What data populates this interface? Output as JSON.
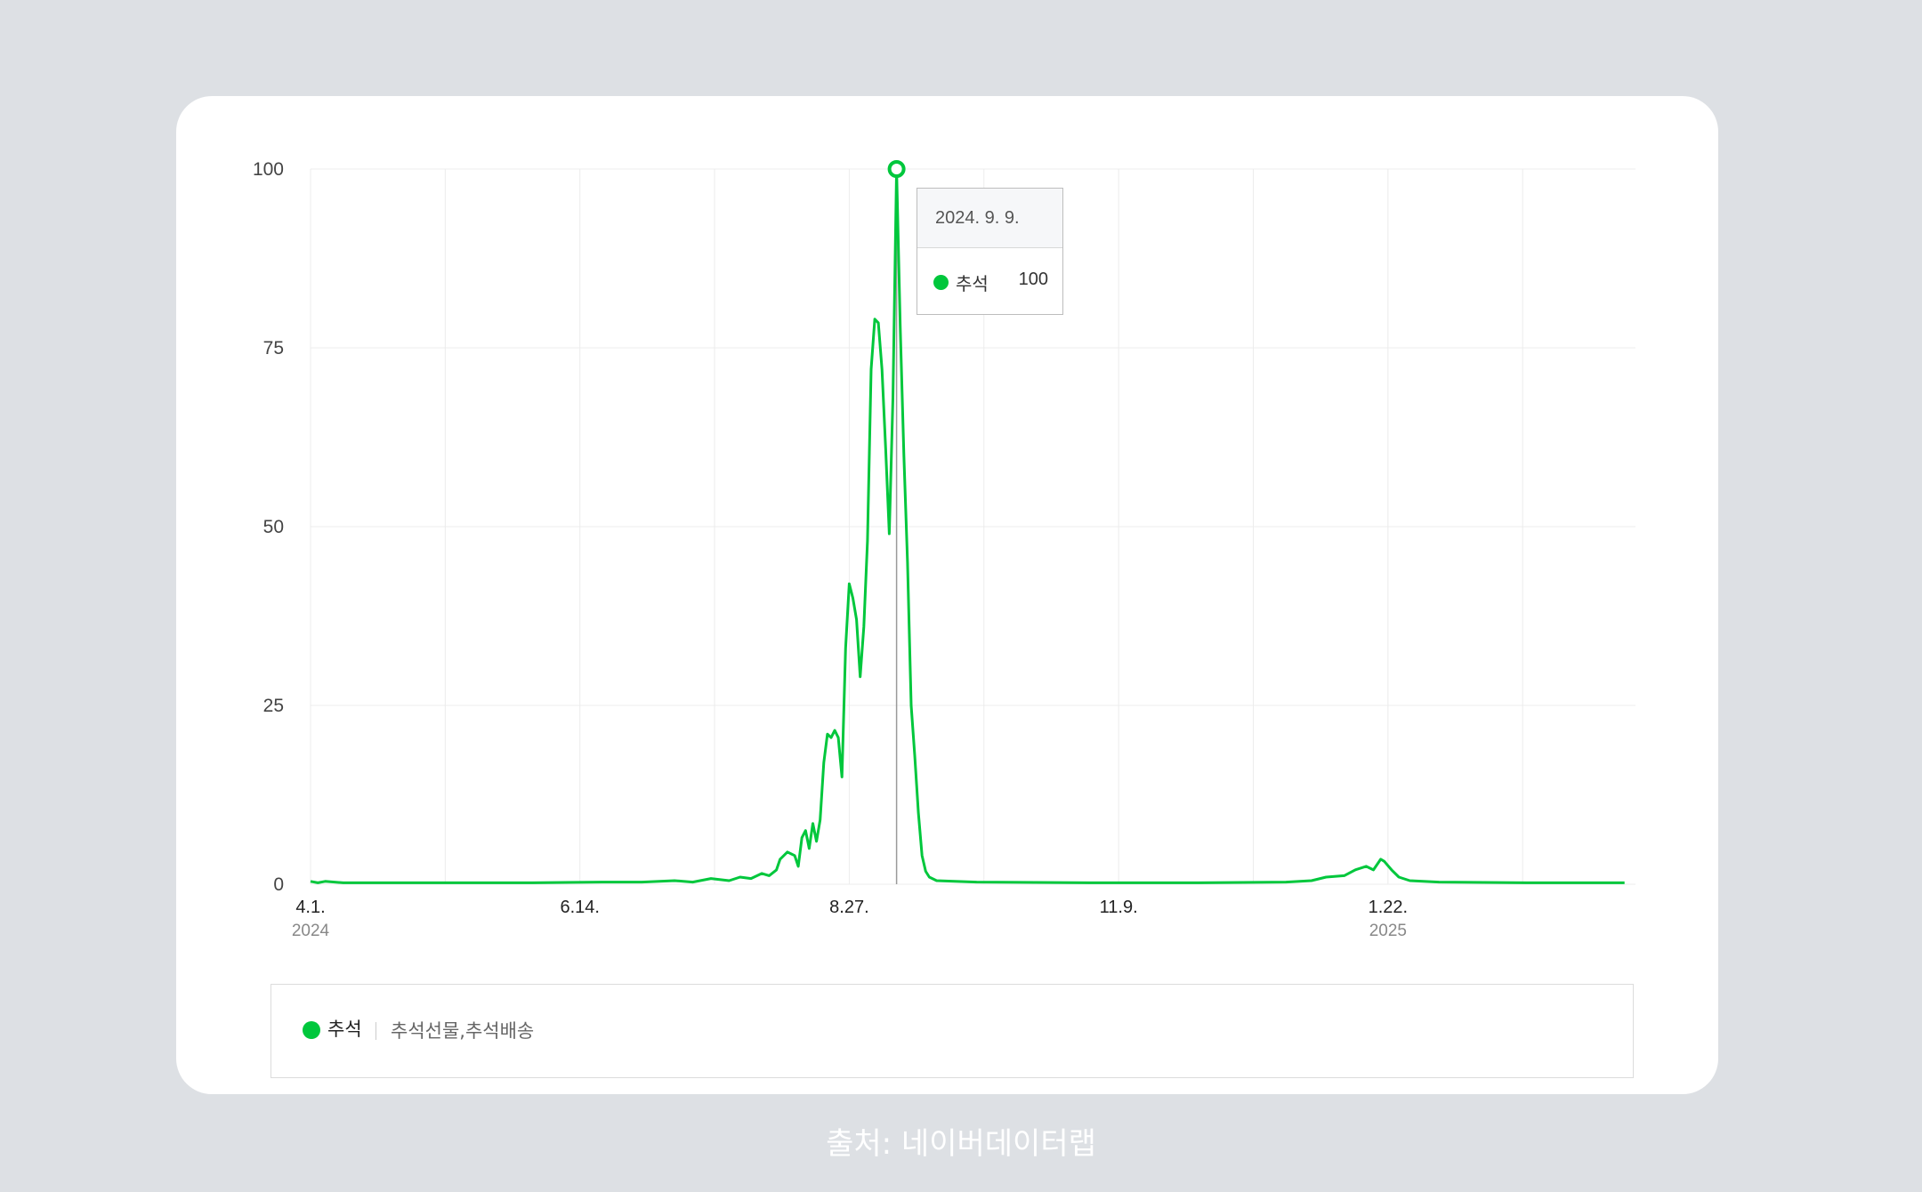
{
  "source_caption": "출처: 네이버데이터랩",
  "colors": {
    "series": "#00c73c",
    "grid": "#ececec",
    "page_bg": "#dde0e4"
  },
  "tooltip": {
    "date": "2024. 9. 9.",
    "series_name": "추석",
    "value": "100"
  },
  "legend": {
    "name": "추석",
    "keywords": "추석선물,추석배송"
  },
  "chart_data": {
    "type": "line",
    "title": "",
    "xlabel": "",
    "ylabel": "",
    "ylim": [
      0,
      100
    ],
    "xlim": [
      "2024-04-01",
      "2025-03-31"
    ],
    "y_ticks": [
      "0",
      "25",
      "50",
      "75",
      "100"
    ],
    "x_ticks": [
      {
        "date": "2024-04-01",
        "label": "4.1.",
        "year": "2024"
      },
      {
        "date": "2024-06-14",
        "label": "6.14.",
        "year": ""
      },
      {
        "date": "2024-08-27",
        "label": "8.27.",
        "year": ""
      },
      {
        "date": "2024-11-09",
        "label": "11.9.",
        "year": ""
      },
      {
        "date": "2025-01-22",
        "label": "1.22.",
        "year": "2025"
      }
    ],
    "grid": true,
    "highlight": {
      "date": "2024-09-09",
      "value": 100
    },
    "series": [
      {
        "name": "추석",
        "points": [
          [
            "2024-04-01",
            0.4
          ],
          [
            "2024-04-03",
            0.2
          ],
          [
            "2024-04-05",
            0.4
          ],
          [
            "2024-04-10",
            0.2
          ],
          [
            "2024-05-01",
            0.2
          ],
          [
            "2024-06-01",
            0.2
          ],
          [
            "2024-06-20",
            0.3
          ],
          [
            "2024-07-01",
            0.3
          ],
          [
            "2024-07-10",
            0.5
          ],
          [
            "2024-07-15",
            0.3
          ],
          [
            "2024-07-20",
            0.8
          ],
          [
            "2024-07-25",
            0.5
          ],
          [
            "2024-07-28",
            1.0
          ],
          [
            "2024-07-31",
            0.8
          ],
          [
            "2024-08-03",
            1.5
          ],
          [
            "2024-08-05",
            1.2
          ],
          [
            "2024-08-07",
            2.0
          ],
          [
            "2024-08-08",
            3.5
          ],
          [
            "2024-08-10",
            4.5
          ],
          [
            "2024-08-12",
            4.0
          ],
          [
            "2024-08-13",
            2.5
          ],
          [
            "2024-08-14",
            6.5
          ],
          [
            "2024-08-15",
            7.5
          ],
          [
            "2024-08-16",
            5.0
          ],
          [
            "2024-08-17",
            8.5
          ],
          [
            "2024-08-18",
            6.0
          ],
          [
            "2024-08-19",
            9.0
          ],
          [
            "2024-08-20",
            17.0
          ],
          [
            "2024-08-21",
            21.0
          ],
          [
            "2024-08-22",
            20.5
          ],
          [
            "2024-08-23",
            21.5
          ],
          [
            "2024-08-24",
            20.5
          ],
          [
            "2024-08-25",
            15.0
          ],
          [
            "2024-08-26",
            33.0
          ],
          [
            "2024-08-27",
            42.0
          ],
          [
            "2024-08-28",
            40.0
          ],
          [
            "2024-08-29",
            37.0
          ],
          [
            "2024-08-30",
            29.0
          ],
          [
            "2024-08-31",
            36.0
          ],
          [
            "2024-09-01",
            48.0
          ],
          [
            "2024-09-02",
            72.0
          ],
          [
            "2024-09-03",
            79.0
          ],
          [
            "2024-09-04",
            78.5
          ],
          [
            "2024-09-05",
            72.0
          ],
          [
            "2024-09-06",
            61.0
          ],
          [
            "2024-09-07",
            49.0
          ],
          [
            "2024-09-08",
            68.0
          ],
          [
            "2024-09-09",
            100.0
          ],
          [
            "2024-09-10",
            78.0
          ],
          [
            "2024-09-11",
            60.0
          ],
          [
            "2024-09-12",
            45.0
          ],
          [
            "2024-09-13",
            25.0
          ],
          [
            "2024-09-14",
            18.0
          ],
          [
            "2024-09-15",
            10.0
          ],
          [
            "2024-09-16",
            4.0
          ],
          [
            "2024-09-17",
            1.8
          ],
          [
            "2024-09-18",
            1.0
          ],
          [
            "2024-09-20",
            0.5
          ],
          [
            "2024-09-25",
            0.4
          ],
          [
            "2024-10-01",
            0.3
          ],
          [
            "2024-11-01",
            0.2
          ],
          [
            "2024-12-01",
            0.2
          ],
          [
            "2024-12-25",
            0.3
          ],
          [
            "2025-01-01",
            0.5
          ],
          [
            "2025-01-05",
            1.0
          ],
          [
            "2025-01-10",
            1.2
          ],
          [
            "2025-01-13",
            2.0
          ],
          [
            "2025-01-16",
            2.5
          ],
          [
            "2025-01-18",
            2.0
          ],
          [
            "2025-01-20",
            3.5
          ],
          [
            "2025-01-21",
            3.2
          ],
          [
            "2025-01-23",
            2.0
          ],
          [
            "2025-01-25",
            1.0
          ],
          [
            "2025-01-28",
            0.5
          ],
          [
            "2025-02-05",
            0.3
          ],
          [
            "2025-03-01",
            0.2
          ],
          [
            "2025-03-28",
            0.2
          ]
        ]
      }
    ]
  }
}
